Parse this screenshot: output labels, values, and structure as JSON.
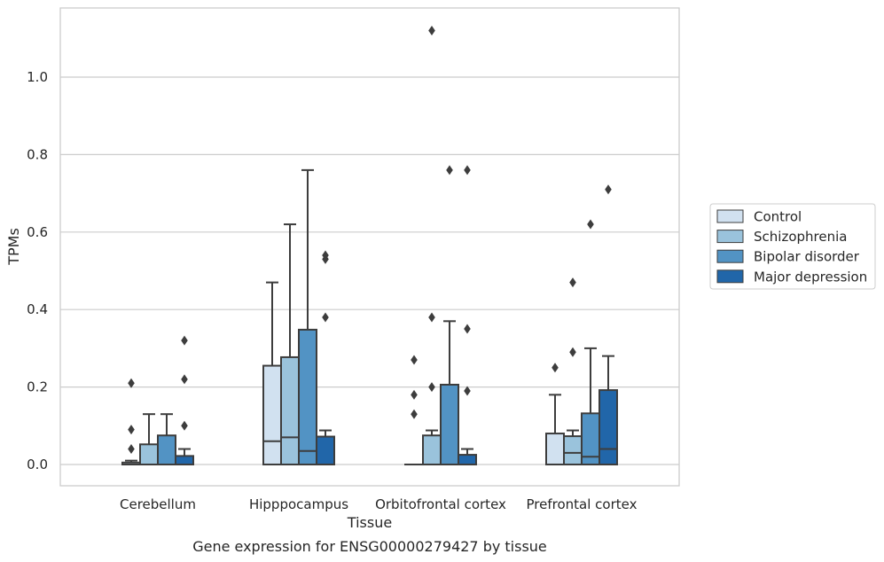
{
  "caption": "Gene expression for ENSG00000279427 by tissue",
  "chart_data": {
    "type": "boxplot",
    "title": "",
    "xlabel": "Tissue",
    "ylabel": "TPMs",
    "ylim": [
      -0.055,
      1.18
    ],
    "yticks": [
      0.0,
      0.2,
      0.4,
      0.6,
      0.8,
      1.0
    ],
    "ytick_labels": [
      "0.0",
      "0.2",
      "0.4",
      "0.6",
      "0.8",
      "1.0"
    ],
    "grid": "horizontal",
    "legend_position": "outside-right",
    "categories": [
      "Cerebellum",
      "Hipppocampus",
      "Orbitofrontal cortex",
      "Prefrontal cortex"
    ],
    "series": [
      {
        "name": "Control",
        "color": "#d1e1f0",
        "boxes": [
          {
            "whislo": 0.0,
            "q1": 0.0,
            "med": 0.0,
            "q3": 0.005,
            "whishi": 0.01,
            "fliers": [
              0.04,
              0.09,
              0.21
            ]
          },
          {
            "whislo": 0.0,
            "q1": 0.0,
            "med": 0.06,
            "q3": 0.255,
            "whishi": 0.47,
            "fliers": []
          },
          {
            "whislo": 0.0,
            "q1": 0.0,
            "med": 0.0,
            "q3": 0.0,
            "whishi": 0.0,
            "fliers": [
              0.13,
              0.18,
              0.27
            ]
          },
          {
            "whislo": 0.0,
            "q1": 0.0,
            "med": 0.0,
            "q3": 0.08,
            "whishi": 0.18,
            "fliers": [
              0.25
            ]
          }
        ]
      },
      {
        "name": "Schizophrenia",
        "color": "#9ac3dc",
        "boxes": [
          {
            "whislo": 0.0,
            "q1": 0.0,
            "med": 0.0,
            "q3": 0.052,
            "whishi": 0.13,
            "fliers": []
          },
          {
            "whislo": 0.0,
            "q1": 0.0,
            "med": 0.07,
            "q3": 0.277,
            "whishi": 0.62,
            "fliers": []
          },
          {
            "whislo": 0.0,
            "q1": 0.0,
            "med": 0.0,
            "q3": 0.075,
            "whishi": 0.088,
            "fliers": [
              0.2,
              0.38,
              1.12
            ]
          },
          {
            "whislo": 0.0,
            "q1": 0.0,
            "med": 0.03,
            "q3": 0.073,
            "whishi": 0.088,
            "fliers": [
              0.29,
              0.47
            ]
          }
        ]
      },
      {
        "name": "Bipolar disorder",
        "color": "#5293c4",
        "boxes": [
          {
            "whislo": 0.0,
            "q1": 0.0,
            "med": 0.0,
            "q3": 0.075,
            "whishi": 0.13,
            "fliers": []
          },
          {
            "whislo": 0.0,
            "q1": 0.0,
            "med": 0.035,
            "q3": 0.348,
            "whishi": 0.76,
            "fliers": []
          },
          {
            "whislo": 0.0,
            "q1": 0.0,
            "med": 0.0,
            "q3": 0.206,
            "whishi": 0.37,
            "fliers": [
              0.76
            ]
          },
          {
            "whislo": 0.0,
            "q1": 0.0,
            "med": 0.02,
            "q3": 0.132,
            "whishi": 0.3,
            "fliers": [
              0.62
            ]
          }
        ]
      },
      {
        "name": "Major depression",
        "color": "#2166a9",
        "boxes": [
          {
            "whislo": 0.0,
            "q1": 0.0,
            "med": 0.0,
            "q3": 0.022,
            "whishi": 0.04,
            "fliers": [
              0.1,
              0.22,
              0.32
            ]
          },
          {
            "whislo": 0.0,
            "q1": 0.0,
            "med": 0.0,
            "q3": 0.072,
            "whishi": 0.088,
            "fliers": [
              0.38,
              0.53,
              0.54
            ]
          },
          {
            "whislo": 0.0,
            "q1": 0.0,
            "med": 0.0,
            "q3": 0.025,
            "whishi": 0.04,
            "fliers": [
              0.19,
              0.35,
              0.76
            ]
          },
          {
            "whislo": 0.0,
            "q1": 0.0,
            "med": 0.04,
            "q3": 0.192,
            "whishi": 0.28,
            "fliers": [
              0.71
            ]
          }
        ]
      }
    ]
  }
}
